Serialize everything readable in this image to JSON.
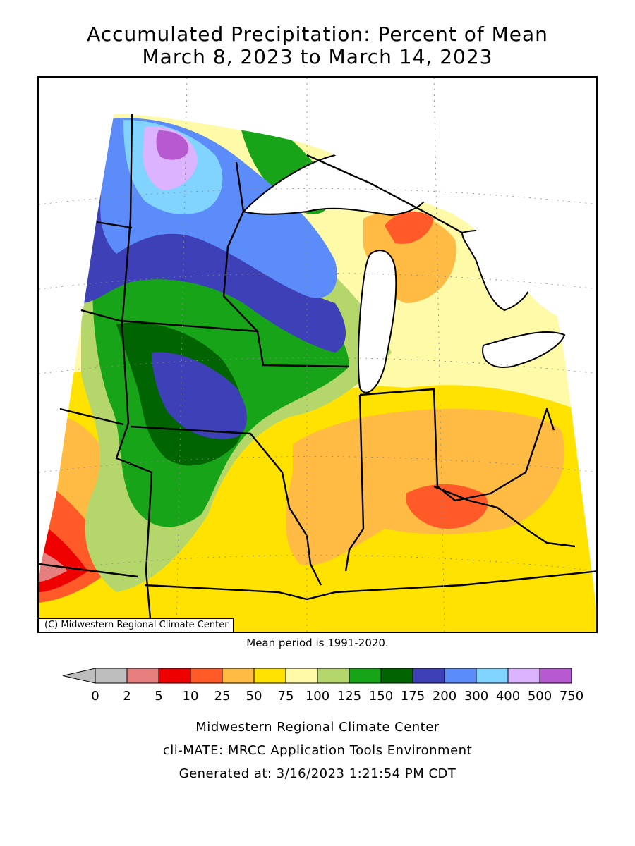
{
  "title": {
    "line1": "Accumulated Precipitation: Percent of Mean",
    "line2": "March 8, 2023 to March 14, 2023"
  },
  "map": {
    "copyright": "(C) Midwestern Regional Climate Center",
    "mean_period": "Mean period is 1991-2020."
  },
  "legend": {
    "ticks": [
      "0",
      "2",
      "5",
      "10",
      "25",
      "50",
      "75",
      "100",
      "125",
      "150",
      "175",
      "200",
      "300",
      "400",
      "500",
      "750"
    ],
    "colors": [
      "#bebebe",
      "#e87f7f",
      "#ee0000",
      "#ff5a28",
      "#ffbb44",
      "#ffe200",
      "#fffaa8",
      "#b5d66a",
      "#18a418",
      "#006400",
      "#3e40b8",
      "#5b8cfa",
      "#80d4ff",
      "#dcb3ff",
      "#b75ad1"
    ]
  },
  "footer": {
    "line1": "Midwestern Regional Climate Center",
    "line2": "cli-MATE: MRCC Application Tools Environment",
    "line3": "Generated at: 3/16/2023 1:21:54 PM CDT"
  }
}
